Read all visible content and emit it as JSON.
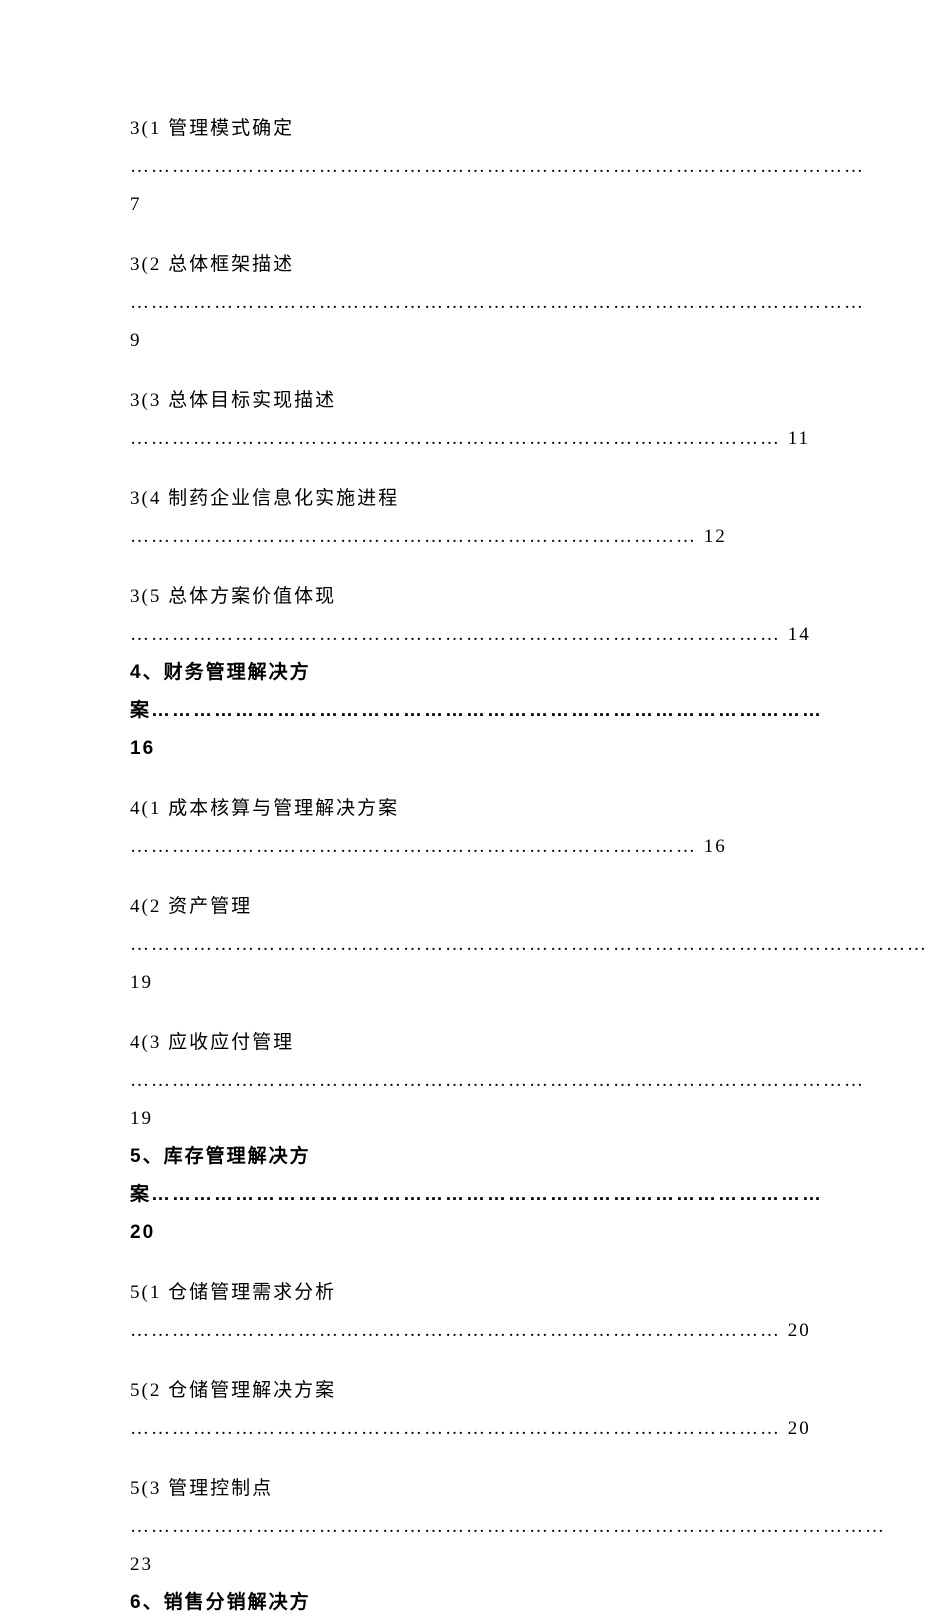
{
  "entries": [
    {
      "label": "3(1 管理模式确定",
      "dots": "……………………………………………………………………………………………",
      "page": "7",
      "tight": false
    },
    {
      "label": "3(2 总体框架描述",
      "dots": "……………………………………………………………………………………………",
      "page": "9",
      "tight": false
    },
    {
      "label": "3(3 总体目标实现描述",
      "dots": "…………………………………………………………………………………",
      "page": "11",
      "tight": false
    },
    {
      "label": "3(4 制药企业信息化实施进程",
      "dots": "………………………………………………………………………",
      "page": "12",
      "tight": false
    },
    {
      "label": "3(5 总体方案价值体现",
      "dots": "………………………………………………………………………………… ",
      "page": "14",
      "tight": false,
      "after_bold_break": "4",
      "after_bold_rest": "、财务管理解决方案…………………………………………………………………………………… 16"
    },
    {
      "label": "4(1 成本核算与管理解决方案",
      "dots": "………………………………………………………………………",
      "page": "16",
      "tight": false
    },
    {
      "label": "4(2 资产管理",
      "dots": "……………………………………………………………………………………………………",
      "page": "19",
      "tight": false
    },
    {
      "label": "4(3 应收应付管理",
      "dots": "……………………………………………………………………………………………",
      "page": "19",
      "tight": true
    },
    {
      "bold": true,
      "label_prefix": "5",
      "label_rest": "、库存管理解决方案…………………………………………………………………………………… 20",
      "tight": false
    },
    {
      "label": "5(1 仓储管理需求分析",
      "dots": "…………………………………………………………………………………",
      "page": "20",
      "tight": false
    },
    {
      "label": "5(2 仓储管理解决方案",
      "dots": "…………………………………………………………………………………",
      "page": "20",
      "tight": false
    },
    {
      "label": "5(3 管理控制点",
      "dots": "………………………………………………………………………………………………",
      "page": "23",
      "tight": true
    },
    {
      "bold": true,
      "label_prefix": "6",
      "label_rest": "、销售分销解决方",
      "tight": false
    }
  ]
}
